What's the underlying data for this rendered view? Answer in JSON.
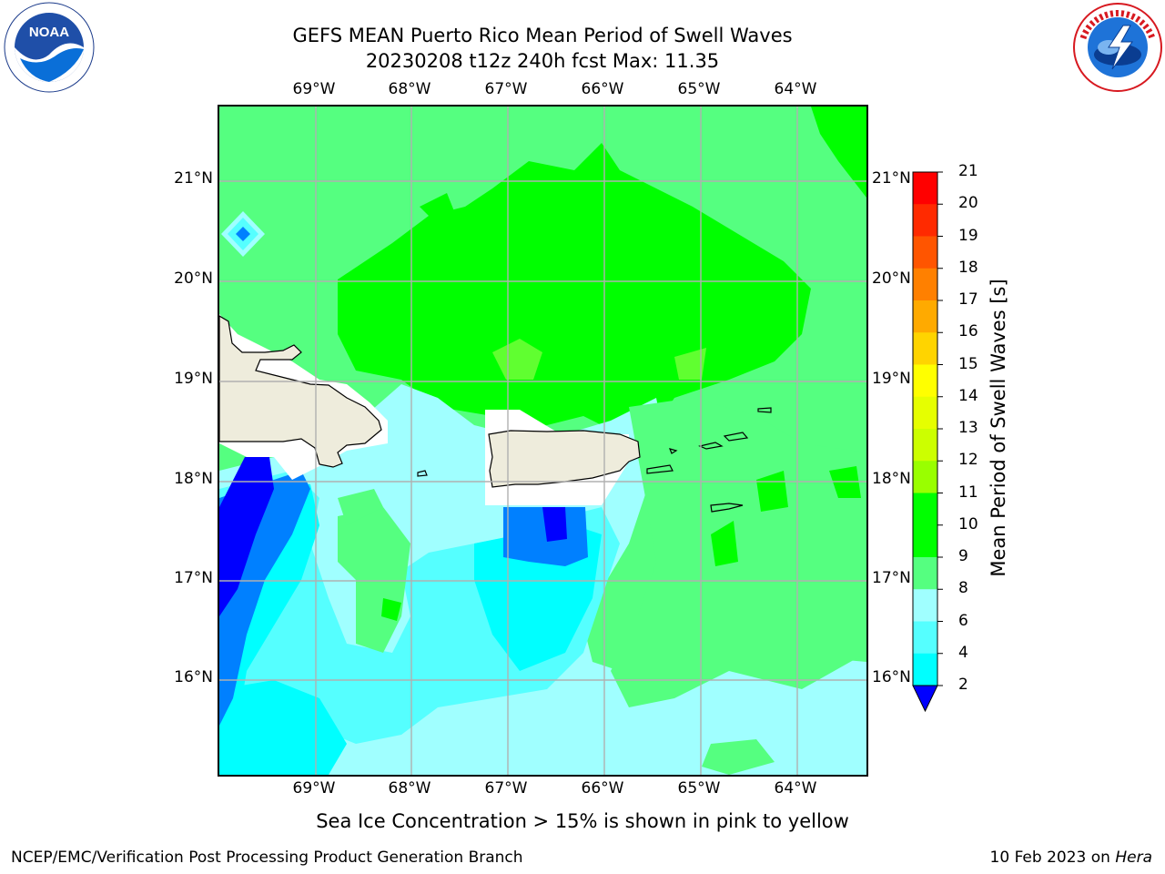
{
  "header": {
    "title_line1": "GEFS MEAN Puerto Rico Mean Period of Swell Waves",
    "title_line2": "20230208 t12z 240h fcst   Max: 11.35"
  },
  "logos": {
    "noaa_text": "NOAA",
    "noaa_ring": "NATIONAL OCEANIC AND ATMOSPHERIC ADMINISTRATION · U.S. DEPARTMENT OF COMMERCE",
    "nws_ring": "NATIONAL WEATHER SERVICE"
  },
  "map": {
    "lon_ticks": [
      "69°W",
      "68°W",
      "67°W",
      "66°W",
      "65°W",
      "64°W"
    ],
    "lat_ticks": [
      "21°N",
      "20°N",
      "19°N",
      "18°N",
      "17°N",
      "16°N"
    ],
    "colors": {
      "c2_4": "#0000ff",
      "c4_6": "#0080ff",
      "c6_8": "#00ffff",
      "c8_9": "#55ffff",
      "c9_10": "#a0ffff",
      "c10_11": "#55ff80",
      "c11_12": "#00ff00",
      "c12_13": "#60ff30",
      "land": "#eeecdc",
      "mask": "#ffffff"
    }
  },
  "colorbar": {
    "title": "Mean Period of Swell Waves [s]",
    "labels": [
      "21",
      "20",
      "19",
      "18",
      "17",
      "16",
      "15",
      "14",
      "13",
      "12",
      "11",
      "10",
      "9",
      "8",
      "6",
      "4",
      "2"
    ],
    "colors": [
      "#ff0000",
      "#ff2a00",
      "#ff5500",
      "#ff8000",
      "#ffaa00",
      "#ffd400",
      "#ffff00",
      "#e6ff00",
      "#ccff00",
      "#99ff00",
      "#00ff00",
      "#00ff00",
      "#55ff80",
      "#a0ffff",
      "#55ffff",
      "#00ffff",
      "#0080ff",
      "#0000ff"
    ]
  },
  "footer": {
    "sea_ice_note": "Sea Ice Concentration > 15% is shown in pink to yellow",
    "left": "NCEP/EMC/Verification Post Processing Product Generation Branch",
    "right_prefix": "10 Feb 2023 on ",
    "right_host": "Hera"
  }
}
